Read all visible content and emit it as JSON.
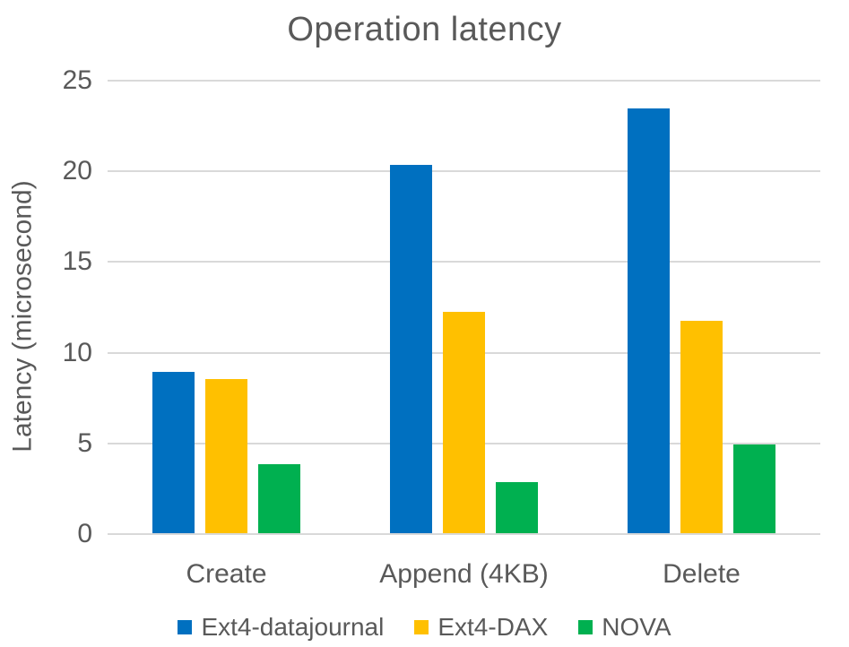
{
  "chart_data": {
    "type": "bar",
    "title": "Operation latency",
    "ylabel": "Latency (microsecond)",
    "xlabel": "",
    "categories": [
      "Create",
      "Append (4KB)",
      "Delete"
    ],
    "series": [
      {
        "name": "Ext4-datajournal",
        "color": "#0070C0",
        "values": [
          8.9,
          20.3,
          23.4
        ]
      },
      {
        "name": "Ext4-DAX",
        "color": "#FFC000",
        "values": [
          8.5,
          12.2,
          11.7
        ]
      },
      {
        "name": "NOVA",
        "color": "#00B050",
        "values": [
          3.8,
          2.8,
          4.9
        ]
      }
    ],
    "ylim": [
      0,
      25
    ],
    "yticks": [
      0,
      5,
      10,
      15,
      20,
      25
    ],
    "grid": true,
    "legend_position": "bottom",
    "colors": {
      "text": "#595959",
      "gridline": "#D9D9D9",
      "background": "#FFFFFF"
    }
  }
}
